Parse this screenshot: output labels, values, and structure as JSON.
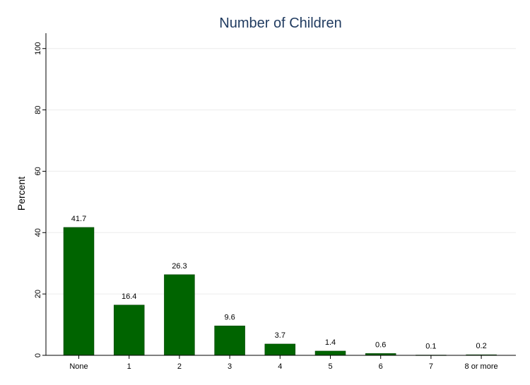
{
  "chart_data": {
    "type": "bar",
    "title": "Number of Children",
    "xlabel": "",
    "ylabel": "Percent",
    "ylim": [
      0,
      105
    ],
    "yticks": [
      0,
      20,
      40,
      60,
      80,
      100
    ],
    "grid": true,
    "categories": [
      "None",
      "1",
      "2",
      "3",
      "4",
      "5",
      "6",
      "7",
      "8 or more"
    ],
    "values": [
      41.7,
      16.4,
      26.3,
      9.6,
      3.7,
      1.4,
      0.6,
      0.1,
      0.2
    ],
    "data_labels": [
      "41.7",
      "16.4",
      "26.3",
      "9.6",
      "3.7",
      "1.4",
      "0.6",
      "0.1",
      "0.2"
    ],
    "bar_color": "#006400",
    "title_color": "#1f3a5f"
  }
}
